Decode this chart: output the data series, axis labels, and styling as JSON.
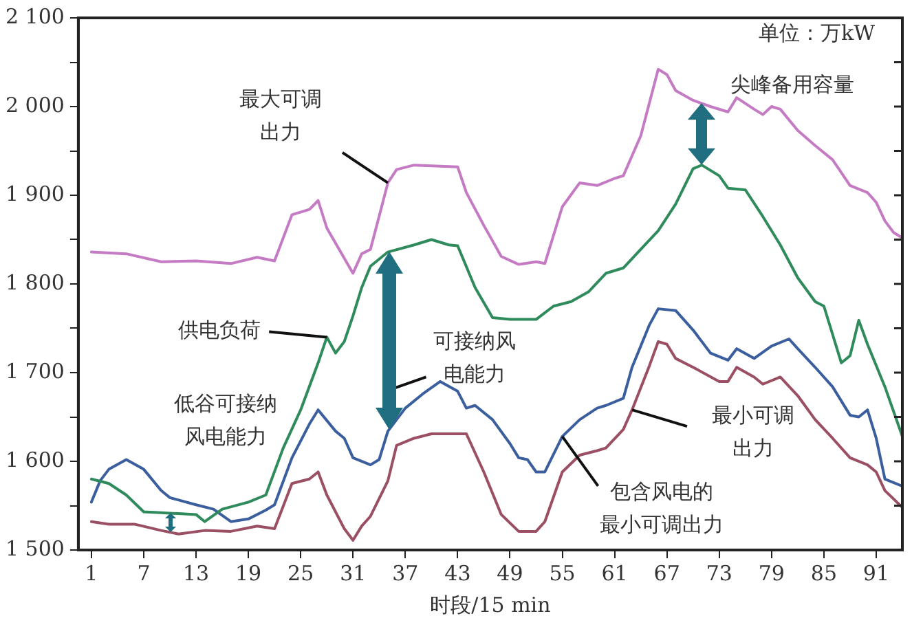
{
  "chart_data": {
    "type": "line",
    "xlabel": "时段/15 min",
    "xlim": [
      -0.5,
      94
    ],
    "xticks": [
      1,
      7,
      13,
      19,
      25,
      31,
      37,
      43,
      49,
      55,
      61,
      67,
      73,
      79,
      85,
      91
    ],
    "ylim": [
      1500,
      2100
    ],
    "yticks": [
      {
        "value": 1500,
        "label": "1 500"
      },
      {
        "value": 1550,
        "label": null
      },
      {
        "value": 1600,
        "label": "1 600"
      },
      {
        "value": 1650,
        "label": null
      },
      {
        "value": 1700,
        "label": "1 700"
      },
      {
        "value": 1750,
        "label": null
      },
      {
        "value": 1800,
        "label": "1 800"
      },
      {
        "value": 1850,
        "label": null
      },
      {
        "value": 1900,
        "label": "1 900"
      },
      {
        "value": 1950,
        "label": null
      },
      {
        "value": 2000,
        "label": "2 000"
      },
      {
        "value": 2050,
        "label": null
      },
      {
        "value": 2100,
        "label": "2 100"
      }
    ],
    "grid": false,
    "legend": false,
    "marker": "none",
    "line_style": "solid",
    "series": [
      {
        "color": "#c57ac4",
        "x": [
          1,
          5,
          9,
          13,
          17,
          20,
          22,
          24,
          26,
          27,
          28,
          31,
          32,
          33,
          35,
          36,
          38,
          43,
          44,
          46,
          48,
          50,
          52,
          53,
          55,
          57,
          59,
          61,
          62,
          64,
          66,
          67,
          68,
          70,
          72,
          74,
          75,
          77,
          78,
          79,
          80,
          82,
          84,
          86,
          88,
          90,
          91,
          92,
          93,
          94
        ],
        "values": [
          1836,
          1834,
          1825,
          1826,
          1823,
          1830,
          1826,
          1878,
          1884,
          1894,
          1863,
          1812,
          1834,
          1839,
          1914,
          1929,
          1934,
          1932,
          1903,
          1866,
          1831,
          1822,
          1825,
          1823,
          1887,
          1914,
          1911,
          1919,
          1922,
          1967,
          2042,
          2036,
          2018,
          2007,
          2000,
          1994,
          2010,
          1997,
          1991,
          2000,
          1997,
          1973,
          1956,
          1940,
          1911,
          1903,
          1892,
          1871,
          1858,
          1852
        ]
      },
      {
        "color": "#2f8a5c",
        "x": [
          1,
          3,
          5,
          7,
          9,
          11,
          13,
          14,
          16,
          19,
          21,
          23,
          25,
          27,
          28,
          29,
          30,
          31,
          32,
          33,
          35,
          38,
          40,
          42,
          43,
          45,
          47,
          49,
          52,
          54,
          56,
          58,
          60,
          62,
          64,
          66,
          68,
          70,
          71,
          73,
          74,
          76,
          78,
          80,
          82,
          84,
          85,
          86,
          87,
          88,
          89,
          90,
          92,
          94
        ],
        "values": [
          1580,
          1575,
          1562,
          1543,
          1542,
          1541,
          1540,
          1532,
          1546,
          1554,
          1562,
          1615,
          1658,
          1711,
          1740,
          1722,
          1735,
          1764,
          1796,
          1820,
          1836,
          1844,
          1850,
          1844,
          1843,
          1796,
          1762,
          1760,
          1760,
          1775,
          1780,
          1791,
          1812,
          1818,
          1839,
          1860,
          1890,
          1930,
          1934,
          1922,
          1908,
          1906,
          1876,
          1844,
          1807,
          1780,
          1775,
          1743,
          1711,
          1719,
          1759,
          1732,
          1684,
          1628
        ]
      },
      {
        "color": "#3b5f9e",
        "x": [
          1,
          2,
          3,
          5,
          7,
          9,
          10,
          13,
          15,
          17,
          19,
          21,
          22,
          24,
          26,
          27,
          29,
          30,
          31,
          33,
          34,
          35,
          37,
          39,
          41,
          43,
          44,
          45,
          47,
          49,
          50,
          51,
          52,
          53,
          55,
          57,
          59,
          60,
          62,
          63,
          65,
          66,
          68,
          70,
          72,
          74,
          75,
          77,
          79,
          81,
          82,
          84,
          86,
          88,
          89,
          90,
          91,
          92,
          94
        ],
        "values": [
          1554,
          1578,
          1591,
          1602,
          1591,
          1567,
          1559,
          1551,
          1546,
          1532,
          1535,
          1545,
          1551,
          1604,
          1642,
          1658,
          1634,
          1626,
          1604,
          1596,
          1602,
          1634,
          1660,
          1676,
          1690,
          1679,
          1660,
          1663,
          1647,
          1620,
          1604,
          1602,
          1588,
          1588,
          1628,
          1647,
          1660,
          1663,
          1671,
          1706,
          1754,
          1772,
          1770,
          1748,
          1722,
          1714,
          1727,
          1716,
          1730,
          1738,
          1727,
          1706,
          1684,
          1652,
          1650,
          1658,
          1626,
          1580,
          1572
        ]
      },
      {
        "color": "#9b4f62",
        "x": [
          1,
          3,
          6,
          9,
          11,
          14,
          17,
          20,
          22,
          24,
          26,
          27,
          28,
          30,
          31,
          32,
          33,
          35,
          36,
          38,
          40,
          44,
          46,
          48,
          50,
          52,
          53,
          55,
          57,
          59,
          60,
          62,
          63,
          65,
          66,
          67,
          68,
          70,
          73,
          74,
          75,
          77,
          78,
          80,
          82,
          84,
          86,
          88,
          90,
          91,
          92,
          94
        ],
        "values": [
          1532,
          1529,
          1529,
          1522,
          1518,
          1522,
          1521,
          1527,
          1524,
          1575,
          1580,
          1588,
          1562,
          1524,
          1511,
          1527,
          1538,
          1578,
          1618,
          1626,
          1631,
          1631,
          1588,
          1540,
          1521,
          1521,
          1532,
          1588,
          1607,
          1612,
          1615,
          1636,
          1658,
          1708,
          1735,
          1732,
          1716,
          1706,
          1690,
          1690,
          1706,
          1695,
          1687,
          1695,
          1674,
          1647,
          1626,
          1604,
          1596,
          1588,
          1567,
          1548
        ]
      }
    ],
    "annotations": [
      "单位：万kW",
      {
        "text": "最大可调出力",
        "x": 35,
        "y": 1914
      },
      {
        "text": "尖峰备用容量",
        "x": 71,
        "y": 2003
      },
      {
        "text": "供电负荷",
        "x": 28,
        "y": 1740
      },
      "可接纳风电能力",
      "低谷可接纳风电能力",
      {
        "text": "最小可调出力",
        "x": 63,
        "y": 1658
      },
      {
        "text": "包含风电的最小可调出力",
        "x": 55,
        "y": 1628
      }
    ]
  }
}
